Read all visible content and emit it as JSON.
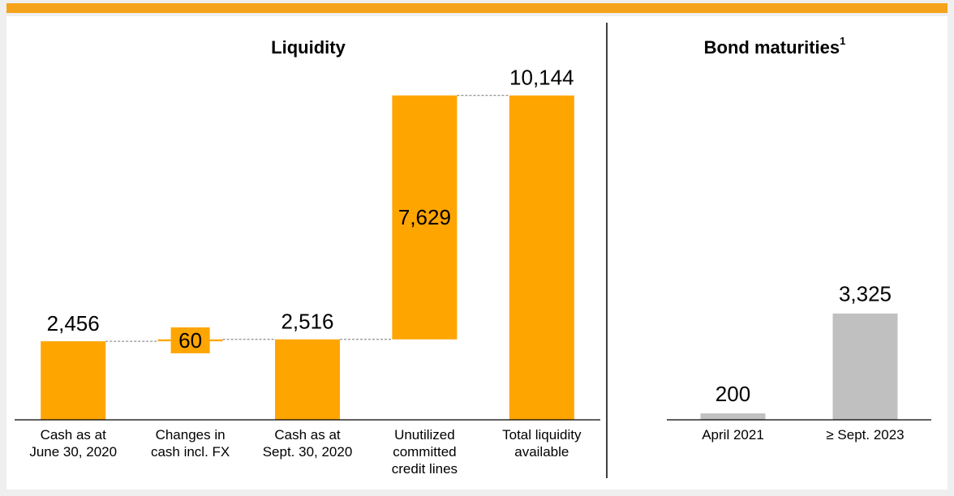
{
  "charts": [
    {
      "type": "waterfall",
      "title": "Liquidity",
      "categories": [
        "Cash as at\nJune 30, 2020",
        "Changes in\ncash incl. FX",
        "Cash as at\nSept. 30, 2020",
        "Unutilized\ncommitted\ncredit lines",
        "Total liquidity\navailable"
      ],
      "values": [
        2456,
        60,
        2516,
        7629,
        10144
      ],
      "value_labels": [
        "2,456",
        "60",
        "2,516",
        "7,629",
        "10,144"
      ],
      "measure": [
        "absolute",
        "relative",
        "absolute",
        "relative",
        "total"
      ],
      "color": "#ffa500",
      "ylim": [
        0,
        11000
      ]
    },
    {
      "type": "bar",
      "title": "Bond maturities",
      "title_footnote": "1",
      "categories": [
        "April 2021",
        "≥ Sept. 2023"
      ],
      "values": [
        200,
        3325
      ],
      "value_labels": [
        "200",
        "3,325"
      ],
      "color": "#c0c0c0",
      "ylim": [
        0,
        11000
      ]
    }
  ]
}
